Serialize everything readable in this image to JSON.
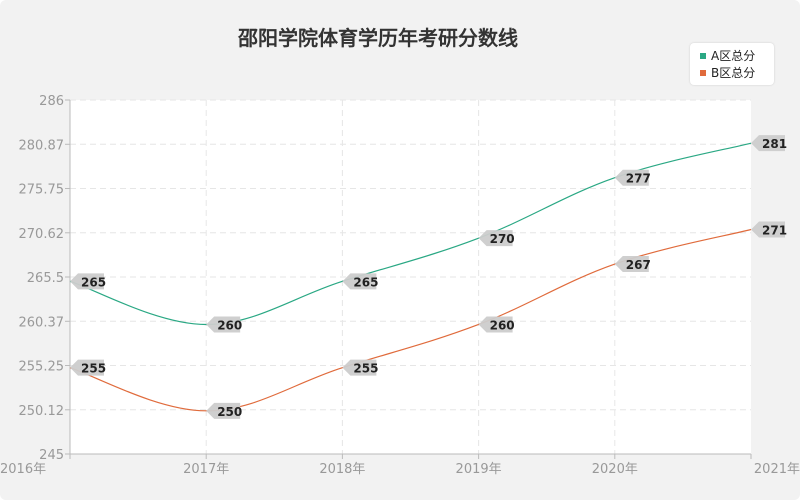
{
  "chart_data": {
    "type": "line",
    "title": "邵阳学院体育学历年考研分数线",
    "categories": [
      "2016年",
      "2017年",
      "2018年",
      "2019年",
      "2020年",
      "2021年"
    ],
    "yticks": [
      "245",
      "250.12",
      "255.25",
      "260.37",
      "265.5",
      "270.62",
      "275.75",
      "280.87",
      "286"
    ],
    "ylim": [
      245,
      286
    ],
    "grid": true,
    "legend_position": "top-right",
    "series": [
      {
        "name": "A区总分",
        "color": "#2aa884",
        "values": [
          265,
          260,
          265,
          270,
          277,
          281
        ]
      },
      {
        "name": "B区总分",
        "color": "#e06b3c",
        "values": [
          255,
          250,
          255,
          260,
          267,
          271
        ]
      }
    ]
  }
}
